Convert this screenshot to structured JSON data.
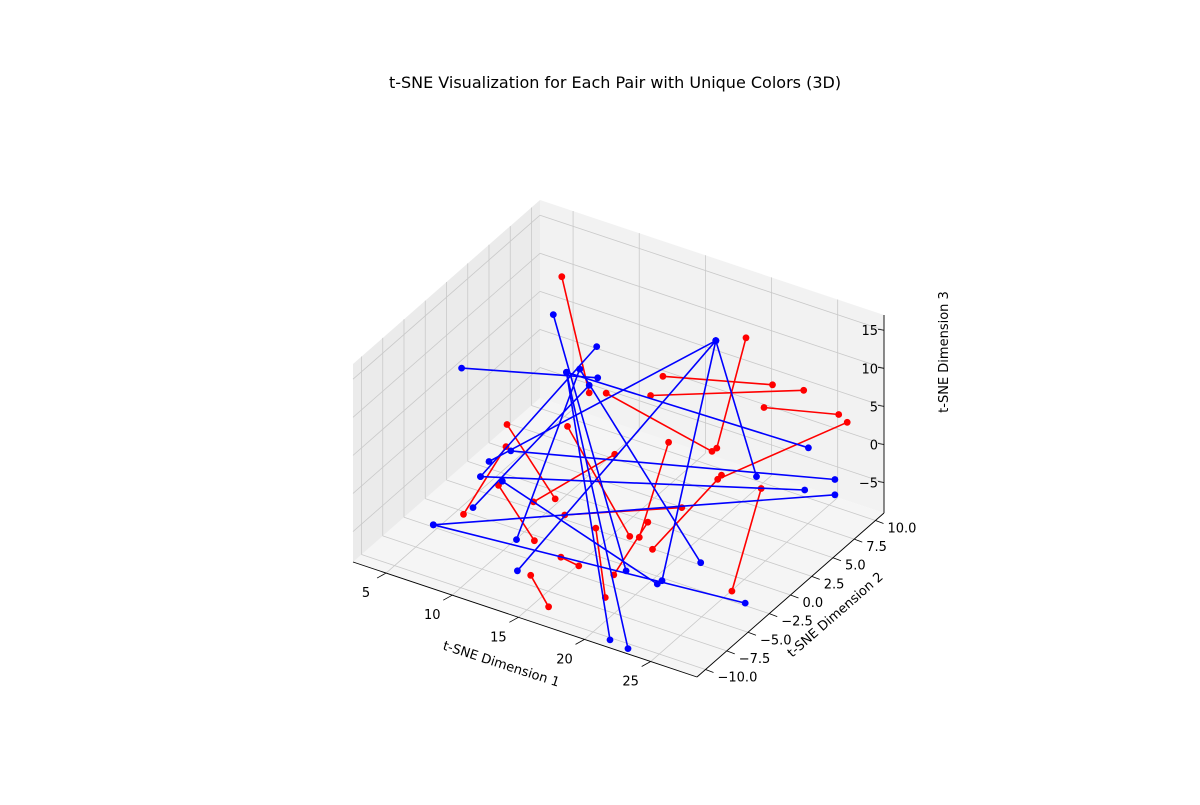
{
  "chart_data": {
    "type": "line",
    "projection": "3d",
    "title": "t-SNE Visualization for Each Pair with Unique Colors (3D)",
    "xlabel": "t-SNE Dimension 1",
    "ylabel": "t-SNE Dimension 2",
    "zlabel": "t-SNE Dimension 3",
    "xlim": [
      2.5,
      28.5
    ],
    "ylim": [
      -11,
      11
    ],
    "zlim": [
      -9,
      17
    ],
    "xticks": [
      "5",
      "10",
      "15",
      "20",
      "25"
    ],
    "yticks": [
      "−10.0",
      "−7.5",
      "−5.0",
      "−2.5",
      "0.0",
      "2.5",
      "5.0",
      "7.5",
      "10.0"
    ],
    "zticks": [
      "−5",
      "0",
      "5",
      "10",
      "15"
    ],
    "grid": true,
    "colors": {
      "red": "#ff0000",
      "blue": "#0000ff",
      "pane_back": "#f2f2f2",
      "pane_side": "#ebebeb",
      "pane_floor": "#f5f5f5",
      "grid": "#c9c9c9"
    },
    "series": [
      {
        "color": "red",
        "pairs": [
          [
            [
              8,
              5,
              16
            ],
            [
              12,
              2,
              6
            ]
          ],
          [
            [
              7,
              0,
              -2
            ],
            [
              7,
              -5,
              -6
            ]
          ],
          [
            [
              11,
              -3,
              -4
            ],
            [
              12,
              5,
              -5
            ]
          ],
          [
            [
              12,
              4,
              4
            ],
            [
              20,
              4,
              1
            ]
          ],
          [
            [
              15,
              6,
              6
            ],
            [
              22,
              8,
              7
            ]
          ],
          [
            [
              16,
              3,
              7
            ],
            [
              25,
              7,
              9
            ]
          ],
          [
            [
              20,
              8,
              12
            ],
            [
              21,
              3,
              3
            ]
          ],
          [
            [
              22,
              7,
              5
            ],
            [
              27,
              8,
              6
            ]
          ],
          [
            [
              18,
              2,
              3
            ],
            [
              19,
              -3,
              -4
            ]
          ],
          [
            [
              11,
              1,
              2
            ],
            [
              17,
              -1,
              -7
            ]
          ],
          [
            [
              9,
              -4,
              -2
            ],
            [
              13,
              -6,
              -5
            ]
          ],
          [
            [
              9,
              -3,
              5
            ],
            [
              12,
              -2,
              -4
            ]
          ],
          [
            [
              14,
              -4,
              -3
            ],
            [
              19,
              2,
              -5
            ]
          ],
          [
            [
              17,
              -5,
              -2
            ],
            [
              19,
              -7,
              -8
            ]
          ],
          [
            [
              15,
              -6,
              -6
            ],
            [
              17,
              -7,
              -5
            ]
          ],
          [
            [
              14,
              -8,
              -7
            ],
            [
              16,
              -9,
              -9
            ]
          ],
          [
            [
              20,
              -3,
              -5
            ],
            [
              22,
              2,
              1
            ]
          ],
          [
            [
              25,
              2,
              1
            ],
            [
              26,
              -3,
              -7
            ]
          ],
          [
            [
              19,
              -6,
              -6
            ],
            [
              19,
              -2,
              -3
            ]
          ],
          [
            [
              23,
              0,
              3
            ],
            [
              27,
              9,
              4
            ]
          ]
        ]
      },
      {
        "color": "blue",
        "pairs": [
          [
            [
              8,
              4,
              12
            ],
            [
              18,
              -3,
              -9
            ]
          ],
          [
            [
              19,
              6,
              13
            ],
            [
              7,
              -2,
              -2
            ]
          ],
          [
            [
              19,
              6,
              13
            ],
            [
              22,
              -5,
              -6
            ]
          ],
          [
            [
              19,
              6,
              13
            ],
            [
              24,
              3,
              1
            ]
          ],
          [
            [
              19,
              6,
              13
            ],
            [
              13,
              -8,
              -7
            ]
          ],
          [
            [
              9,
              4,
              5
            ],
            [
              20,
              -8,
              -12
            ]
          ],
          [
            [
              9,
              4,
              5
            ],
            [
              26,
              6,
              3
            ]
          ],
          [
            [
              9,
              4,
              5
            ],
            [
              22,
              -9,
              -11
            ]
          ],
          [
            [
              7,
              -3,
              -3
            ],
            [
              27,
              4,
              0
            ]
          ],
          [
            [
              7,
              -3,
              -3
            ],
            [
              10,
              6,
              7
            ]
          ],
          [
            [
              8,
              -1,
              -1
            ],
            [
              28,
              6,
              0
            ]
          ],
          [
            [
              6,
              -7,
              -6
            ],
            [
              28,
              6,
              -2
            ]
          ],
          [
            [
              6,
              -7,
              -6
            ],
            [
              27,
              -3,
              -8
            ]
          ],
          [
            [
              3,
              1,
              5
            ],
            [
              12,
              3,
              7
            ]
          ],
          [
            [
              10,
              4,
              6
            ],
            [
              11,
              -5,
              -7
            ]
          ],
          [
            [
              10,
              4,
              6
            ],
            [
              23,
              -2,
              -6
            ]
          ],
          [
            [
              12,
              2,
              7
            ],
            [
              9,
              -7,
              -2
            ]
          ],
          [
            [
              8,
              -2,
              -4
            ],
            [
              21,
              -4,
              -8
            ]
          ]
        ]
      }
    ]
  }
}
